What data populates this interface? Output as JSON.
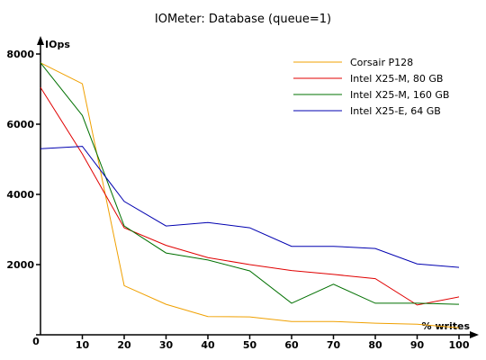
{
  "chart_data": {
    "type": "line",
    "title": "IOMeter: Database (queue=1)",
    "xlabel": "% writes",
    "ylabel": "IOps",
    "x": [
      0,
      10,
      20,
      30,
      40,
      50,
      60,
      70,
      80,
      90,
      100
    ],
    "xlim": [
      0,
      100
    ],
    "ylim": [
      0,
      8000
    ],
    "x_ticks": [
      0,
      10,
      20,
      30,
      40,
      50,
      60,
      70,
      80,
      90,
      100
    ],
    "y_ticks": [
      0,
      2000,
      4000,
      6000,
      8000
    ],
    "grid": false,
    "legend": "top-right",
    "series": [
      {
        "name": "Corsair P128",
        "color": "#f0a000",
        "values": [
          7750,
          7150,
          1400,
          870,
          520,
          510,
          380,
          380,
          330,
          300,
          200
        ]
      },
      {
        "name": "Intel X25-M, 80 GB",
        "color": "#e00000",
        "values": [
          7050,
          5150,
          3050,
          2550,
          2200,
          2000,
          1830,
          1720,
          1600,
          850,
          1080
        ]
      },
      {
        "name": "Intel X25-M, 160 GB",
        "color": "#007000",
        "values": [
          7750,
          6250,
          3100,
          2330,
          2130,
          1820,
          900,
          1440,
          900,
          900,
          870
        ]
      },
      {
        "name": "Intel X25-E, 64 GB",
        "color": "#0000b0",
        "values": [
          5300,
          5370,
          3800,
          3100,
          3200,
          3050,
          2520,
          2520,
          2460,
          2020,
          1920
        ]
      }
    ]
  }
}
